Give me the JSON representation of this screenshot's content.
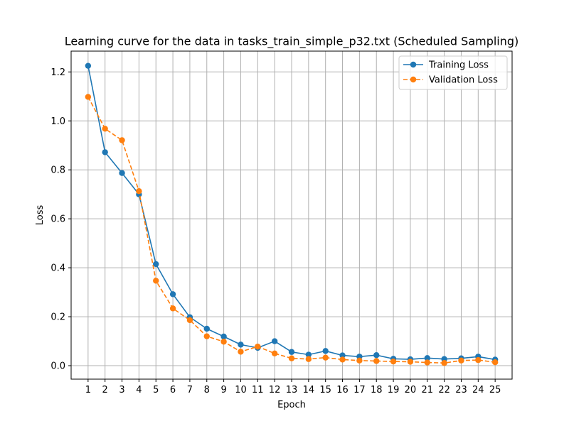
{
  "chart_data": {
    "type": "line",
    "title": "Learning curve for the data in tasks_train_simple_p32.txt (Scheduled Sampling)",
    "xlabel": "Epoch",
    "ylabel": "Loss",
    "x": [
      1,
      2,
      3,
      4,
      5,
      6,
      7,
      8,
      9,
      10,
      11,
      12,
      13,
      14,
      15,
      16,
      17,
      18,
      19,
      20,
      21,
      22,
      23,
      24,
      25
    ],
    "xlim": [
      0,
      26
    ],
    "ylim": [
      -0.055,
      1.285
    ],
    "yticks": [
      "0.0",
      "0.2",
      "0.4",
      "0.6",
      "0.8",
      "1.0",
      "1.2"
    ],
    "xticks": [
      "1",
      "2",
      "3",
      "4",
      "5",
      "6",
      "7",
      "8",
      "9",
      "10",
      "11",
      "12",
      "13",
      "14",
      "15",
      "16",
      "17",
      "18",
      "19",
      "20",
      "21",
      "22",
      "23",
      "24",
      "25"
    ],
    "grid": true,
    "legend_position": "top-right",
    "series": [
      {
        "name": "Training Loss",
        "color": "#1f77b4",
        "linestyle": "solid",
        "marker": "circle",
        "values": [
          1.225,
          0.872,
          0.787,
          0.7,
          0.415,
          0.292,
          0.198,
          0.151,
          0.119,
          0.086,
          0.073,
          0.1,
          0.056,
          0.045,
          0.06,
          0.042,
          0.037,
          0.043,
          0.028,
          0.026,
          0.031,
          0.027,
          0.03,
          0.037,
          0.025
        ]
      },
      {
        "name": "Validation Loss",
        "color": "#ff7f0e",
        "linestyle": "dashed",
        "marker": "circle",
        "values": [
          1.098,
          0.968,
          0.921,
          0.713,
          0.347,
          0.234,
          0.186,
          0.12,
          0.098,
          0.057,
          0.078,
          0.05,
          0.03,
          0.027,
          0.033,
          0.025,
          0.021,
          0.019,
          0.017,
          0.016,
          0.013,
          0.011,
          0.021,
          0.023,
          0.014
        ]
      }
    ]
  }
}
